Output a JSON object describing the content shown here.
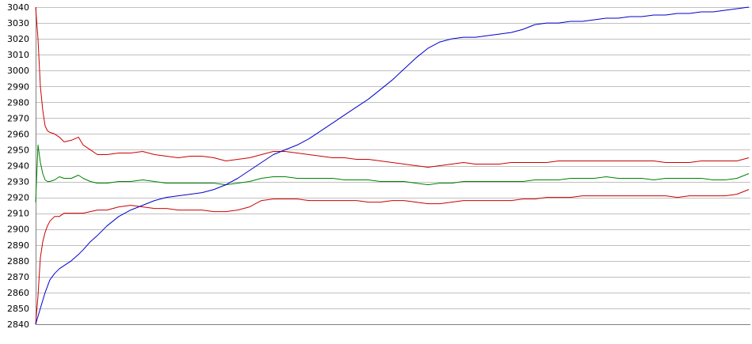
{
  "chart_data": {
    "type": "line",
    "title": "",
    "xlabel": "",
    "ylabel": "",
    "ylim": [
      2840,
      3040
    ],
    "grid": true,
    "legend": "none",
    "y_ticks": [
      3040,
      3030,
      3020,
      3010,
      3000,
      2990,
      2980,
      2970,
      2960,
      2950,
      2940,
      2930,
      2920,
      2910,
      2900,
      2890,
      2880,
      2870,
      2860,
      2850,
      2840
    ],
    "x": [
      0,
      1,
      2,
      3,
      4,
      5,
      6,
      8,
      10,
      12,
      15,
      18,
      20,
      23,
      26,
      30,
      35,
      40,
      45,
      50,
      55,
      60,
      65,
      70,
      75,
      80,
      85,
      90,
      95,
      100,
      105,
      110,
      115,
      120,
      125,
      130,
      135,
      140,
      145,
      150,
      155,
      160,
      165,
      170,
      175,
      180,
      185,
      190,
      195,
      200,
      205,
      210,
      215,
      220,
      225,
      230,
      235,
      240,
      245,
      250,
      255,
      260,
      265,
      270,
      275,
      280,
      285,
      290,
      295,
      300
    ],
    "series": [
      {
        "color": "#cc0000",
        "values": [
          3040,
          3020,
          2990,
          2975,
          2965,
          2962,
          2961,
          2960,
          2958,
          2955,
          2956,
          2958,
          2953,
          2950,
          2947,
          2947,
          2948,
          2948,
          2949,
          2947,
          2946,
          2945,
          2946,
          2946,
          2945,
          2943,
          2944,
          2945,
          2947,
          2949,
          2949,
          2948,
          2947,
          2946,
          2945,
          2945,
          2944,
          2944,
          2943,
          2942,
          2941,
          2940,
          2939,
          2940,
          2941,
          2942,
          2941,
          2941,
          2941,
          2942,
          2942,
          2942,
          2942,
          2943,
          2943,
          2943,
          2943,
          2943,
          2943,
          2943,
          2943,
          2943,
          2942,
          2942,
          2942,
          2943,
          2943,
          2943,
          2943,
          2945
        ]
      },
      {
        "color": "#008000",
        "values": [
          2917,
          2953,
          2942,
          2935,
          2931,
          2930,
          2930,
          2931,
          2933,
          2932,
          2932,
          2934,
          2932,
          2930,
          2929,
          2929,
          2930,
          2930,
          2931,
          2930,
          2929,
          2929,
          2929,
          2929,
          2929,
          2928,
          2929,
          2930,
          2932,
          2933,
          2933,
          2932,
          2932,
          2932,
          2932,
          2931,
          2931,
          2931,
          2930,
          2930,
          2930,
          2929,
          2928,
          2929,
          2929,
          2930,
          2930,
          2930,
          2930,
          2930,
          2930,
          2931,
          2931,
          2931,
          2932,
          2932,
          2932,
          2933,
          2932,
          2932,
          2932,
          2931,
          2932,
          2932,
          2932,
          2932,
          2931,
          2931,
          2932,
          2935
        ]
      },
      {
        "color": "#cc0000",
        "values": [
          2840,
          2858,
          2882,
          2892,
          2898,
          2902,
          2905,
          2908,
          2908,
          2910,
          2910,
          2910,
          2910,
          2911,
          2912,
          2912,
          2914,
          2915,
          2914,
          2913,
          2913,
          2912,
          2912,
          2912,
          2911,
          2911,
          2912,
          2914,
          2918,
          2919,
          2919,
          2919,
          2918,
          2918,
          2918,
          2918,
          2918,
          2917,
          2917,
          2918,
          2918,
          2917,
          2916,
          2916,
          2917,
          2918,
          2918,
          2918,
          2918,
          2918,
          2919,
          2919,
          2920,
          2920,
          2920,
          2921,
          2921,
          2921,
          2921,
          2921,
          2921,
          2921,
          2921,
          2920,
          2921,
          2921,
          2921,
          2921,
          2922,
          2925
        ]
      },
      {
        "color": "#0000cc",
        "values": [
          2840,
          2845,
          2850,
          2855,
          2860,
          2864,
          2868,
          2872,
          2875,
          2877,
          2880,
          2884,
          2887,
          2892,
          2896,
          2902,
          2908,
          2912,
          2915,
          2918,
          2920,
          2921,
          2922,
          2923,
          2925,
          2928,
          2932,
          2937,
          2942,
          2947,
          2950,
          2953,
          2957,
          2962,
          2967,
          2972,
          2977,
          2982,
          2988,
          2994,
          3001,
          3008,
          3014,
          3018,
          3020,
          3021,
          3021,
          3022,
          3023,
          3024,
          3026,
          3029,
          3030,
          3030,
          3031,
          3031,
          3032,
          3033,
          3033,
          3034,
          3034,
          3035,
          3035,
          3036,
          3036,
          3037,
          3037,
          3038,
          3039,
          3040
        ]
      }
    ]
  }
}
